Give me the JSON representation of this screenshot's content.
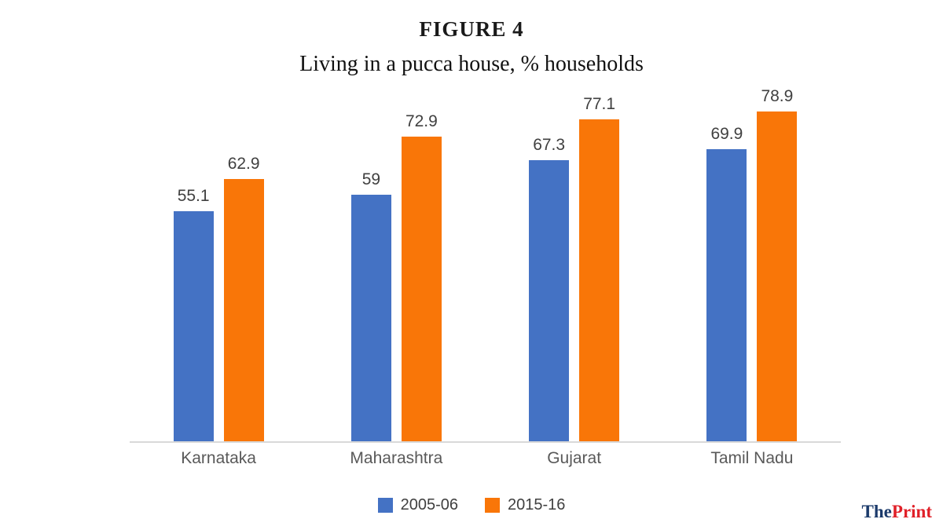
{
  "figure": {
    "label": "FIGURE 4",
    "subtitle": "Living in a pucca house, % households"
  },
  "chart_data": {
    "type": "bar",
    "title": "FIGURE 4",
    "subtitle": "Living in a pucca house, % households",
    "categories": [
      "Karnataka",
      "Maharashtra",
      "Gujarat",
      "Tamil Nadu"
    ],
    "series": [
      {
        "name": "2005-06",
        "color": "#4472c4",
        "values": [
          55.1,
          59,
          67.3,
          69.9
        ]
      },
      {
        "name": "2015-16",
        "color": "#f97608",
        "values": [
          62.9,
          72.9,
          77.1,
          78.9
        ]
      }
    ],
    "ylim": [
      0,
      85
    ],
    "grid": false,
    "axis_line_color": "#d9d9d9",
    "legend_position": "bottom",
    "value_labels_shown": true
  },
  "branding": {
    "the_label": "The",
    "print_label": "Print",
    "the_color": "#1b3a6b",
    "print_color": "#e02028"
  }
}
